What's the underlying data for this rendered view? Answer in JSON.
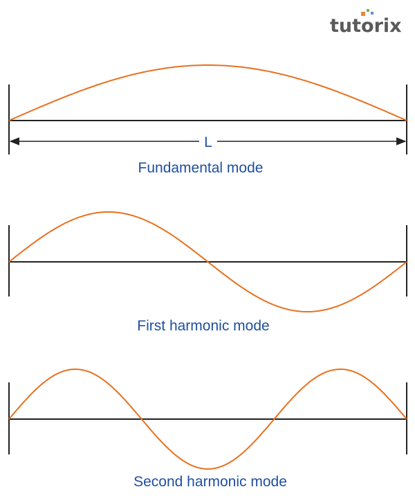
{
  "logo": {
    "text": "tutorix"
  },
  "colors": {
    "wave": "#e8701e",
    "string": "#222222",
    "label": "#1f4fa0"
  },
  "modes": [
    {
      "label": "Fundamental mode",
      "half_wavelengths": 1,
      "length_label": "L"
    },
    {
      "label": "First harmonic mode",
      "half_wavelengths": 2
    },
    {
      "label": "Second harmonic mode",
      "half_wavelengths": 3
    }
  ]
}
